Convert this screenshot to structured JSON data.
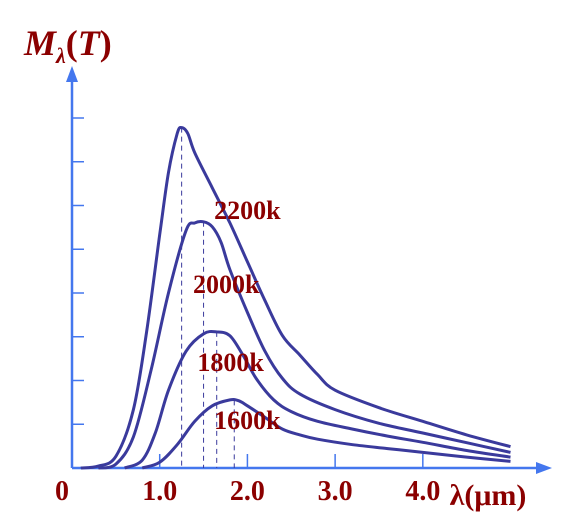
{
  "chart_data": {
    "type": "line",
    "title": "",
    "ylabel_main": "M",
    "ylabel_sub": "λ",
    "ylabel_paren_open": "(",
    "ylabel_var": "T",
    "ylabel_paren_close": ")",
    "xlabel": "λ(μm)",
    "origin_label": "0",
    "x_ticks": [
      {
        "value": 1.0,
        "label": "1.0"
      },
      {
        "value": 2.0,
        "label": "2.0"
      },
      {
        "value": 3.0,
        "label": "3.0"
      },
      {
        "value": 4.0,
        "label": "4.0"
      }
    ],
    "xlim": [
      0,
      5.45
    ],
    "ylim": [
      0,
      10
    ],
    "grid": false,
    "colors": {
      "curve": "#3a3a9c",
      "axis": "#4477ee",
      "label": "#8b0000",
      "peak_line": "#3a3a9c"
    },
    "series": [
      {
        "name": "2200k",
        "peak_x": 1.25,
        "points": [
          [
            0.1,
            0.0
          ],
          [
            0.3,
            0.05
          ],
          [
            0.5,
            0.3
          ],
          [
            0.7,
            1.5
          ],
          [
            0.85,
            3.5
          ],
          [
            1.0,
            6.0
          ],
          [
            1.1,
            7.6
          ],
          [
            1.2,
            8.6
          ],
          [
            1.25,
            8.75
          ],
          [
            1.32,
            8.6
          ],
          [
            1.4,
            8.1
          ],
          [
            1.6,
            7.2
          ],
          [
            1.8,
            6.3
          ],
          [
            2.0,
            5.3
          ],
          [
            2.2,
            4.3
          ],
          [
            2.4,
            3.4
          ],
          [
            2.6,
            2.9
          ],
          [
            2.8,
            2.4
          ],
          [
            3.0,
            2.0
          ],
          [
            3.5,
            1.55
          ],
          [
            4.0,
            1.2
          ],
          [
            4.5,
            0.85
          ],
          [
            5.0,
            0.55
          ]
        ]
      },
      {
        "name": "2000k",
        "peak_x": 1.5,
        "points": [
          [
            0.3,
            0.0
          ],
          [
            0.5,
            0.1
          ],
          [
            0.7,
            0.8
          ],
          [
            0.9,
            2.5
          ],
          [
            1.1,
            4.5
          ],
          [
            1.3,
            6.1
          ],
          [
            1.4,
            6.3
          ],
          [
            1.5,
            6.33
          ],
          [
            1.6,
            6.2
          ],
          [
            1.7,
            5.8
          ],
          [
            1.8,
            5.1
          ],
          [
            2.0,
            4.0
          ],
          [
            2.2,
            3.0
          ],
          [
            2.4,
            2.3
          ],
          [
            2.6,
            1.9
          ],
          [
            3.0,
            1.5
          ],
          [
            3.5,
            1.15
          ],
          [
            4.0,
            0.9
          ],
          [
            4.5,
            0.65
          ],
          [
            5.0,
            0.4
          ]
        ]
      },
      {
        "name": "1800k",
        "peak_x": 1.65,
        "points": [
          [
            0.6,
            0.0
          ],
          [
            0.8,
            0.2
          ],
          [
            0.95,
            0.9
          ],
          [
            1.1,
            2.0
          ],
          [
            1.3,
            3.0
          ],
          [
            1.5,
            3.45
          ],
          [
            1.65,
            3.5
          ],
          [
            1.8,
            3.4
          ],
          [
            1.95,
            2.9
          ],
          [
            2.1,
            2.3
          ],
          [
            2.3,
            1.75
          ],
          [
            2.5,
            1.45
          ],
          [
            2.8,
            1.2
          ],
          [
            3.2,
            1.0
          ],
          [
            3.6,
            0.82
          ],
          [
            4.0,
            0.66
          ],
          [
            4.5,
            0.45
          ],
          [
            5.0,
            0.28
          ]
        ]
      },
      {
        "name": "1600k",
        "peak_x": 1.85,
        "points": [
          [
            0.8,
            0.0
          ],
          [
            1.0,
            0.15
          ],
          [
            1.2,
            0.6
          ],
          [
            1.4,
            1.2
          ],
          [
            1.6,
            1.6
          ],
          [
            1.8,
            1.75
          ],
          [
            1.9,
            1.73
          ],
          [
            2.0,
            1.6
          ],
          [
            2.2,
            1.3
          ],
          [
            2.4,
            1.0
          ],
          [
            2.6,
            0.85
          ],
          [
            2.8,
            0.74
          ],
          [
            3.2,
            0.6
          ],
          [
            3.6,
            0.5
          ],
          [
            4.0,
            0.4
          ],
          [
            4.5,
            0.28
          ],
          [
            5.0,
            0.17
          ]
        ]
      }
    ],
    "series_label_anchors": [
      {
        "name": "2200k",
        "x": 1.62,
        "y": 6.4
      },
      {
        "name": "2000k",
        "x": 1.38,
        "y": 4.5
      },
      {
        "name": "1800k",
        "x": 1.43,
        "y": 2.5
      },
      {
        "name": "1600k",
        "x": 1.62,
        "y": 1.0
      }
    ]
  }
}
